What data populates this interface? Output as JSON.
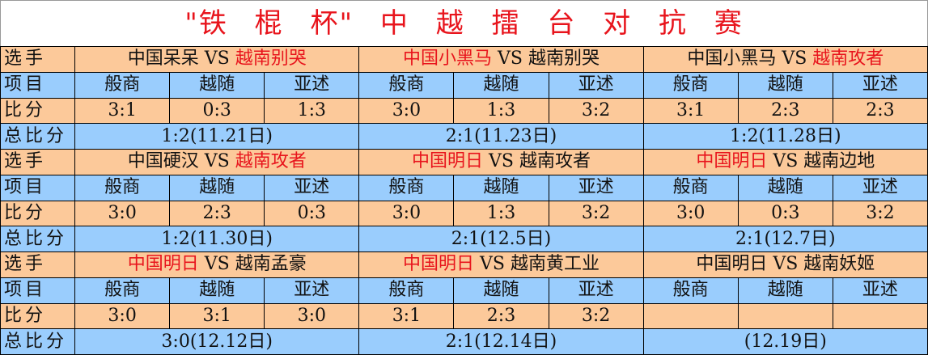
{
  "title": "\"铁 棍 杯\" 中 越 擂 台 对 抗 赛",
  "labels": {
    "players": "选手",
    "items": "项目",
    "score": "比分",
    "total": "总比分"
  },
  "vs": "VS",
  "colors": {
    "orange": "#fcc99a",
    "blue": "#9acdfd",
    "red": "#e8141c"
  },
  "blocks": [
    {
      "matches": [
        {
          "cn": "中国呆呆",
          "vn": "越南别哭",
          "red": "vn",
          "items": [
            "般商",
            "越随",
            "亚述"
          ],
          "scores": [
            "3:1",
            "0:3",
            "1:3"
          ],
          "total": "1:2(11.21日)"
        },
        {
          "cn": "中国小黑马",
          "vn": "越南别哭",
          "red": "cn",
          "items": [
            "般商",
            "越随",
            "亚述"
          ],
          "scores": [
            "3:0",
            "1:3",
            "3:2"
          ],
          "total": "2:1(11.23日)"
        },
        {
          "cn": "中国小黑马",
          "vn": "越南攻者",
          "red": "vn",
          "items": [
            "般商",
            "越随",
            "亚述"
          ],
          "scores": [
            "3:1",
            "2:3",
            "2:3"
          ],
          "total": "1:2(11.28日)"
        }
      ]
    },
    {
      "matches": [
        {
          "cn": "中国硬汉",
          "vn": "越南攻者",
          "red": "vn",
          "items": [
            "般商",
            "越随",
            "亚述"
          ],
          "scores": [
            "3:0",
            "2:3",
            "0:3"
          ],
          "total": "1:2(11.30日)"
        },
        {
          "cn": "中国明日",
          "vn": "越南攻者",
          "red": "cn",
          "items": [
            "般商",
            "越随",
            "亚述"
          ],
          "scores": [
            "3:0",
            "1:3",
            "3:2"
          ],
          "total": "2:1(12.5日)"
        },
        {
          "cn": "中国明日",
          "vn": "越南边地",
          "red": "cn",
          "items": [
            "般商",
            "越随",
            "亚述"
          ],
          "scores": [
            "3:0",
            "0:3",
            "3:2"
          ],
          "total": "2:1(12.7日)"
        }
      ]
    },
    {
      "matches": [
        {
          "cn": "中国明日",
          "vn": "越南孟豪",
          "red": "cn",
          "items": [
            "般商",
            "越随",
            "亚述"
          ],
          "scores": [
            "3:0",
            "3:1",
            "3:0"
          ],
          "total": "3:0(12.12日)"
        },
        {
          "cn": "中国明日",
          "vn": "越南黄工业",
          "red": "cn",
          "items": [
            "般商",
            "越随",
            "亚述"
          ],
          "scores": [
            "3:1",
            "2:3",
            "3:2"
          ],
          "total": "2:1(12.14日)"
        },
        {
          "cn": "中国明日",
          "vn": "越南妖姬",
          "red": "",
          "items": [
            "般商",
            "越随",
            "亚述"
          ],
          "scores": [
            "",
            "",
            ""
          ],
          "total": "(12.19日)"
        }
      ]
    }
  ]
}
